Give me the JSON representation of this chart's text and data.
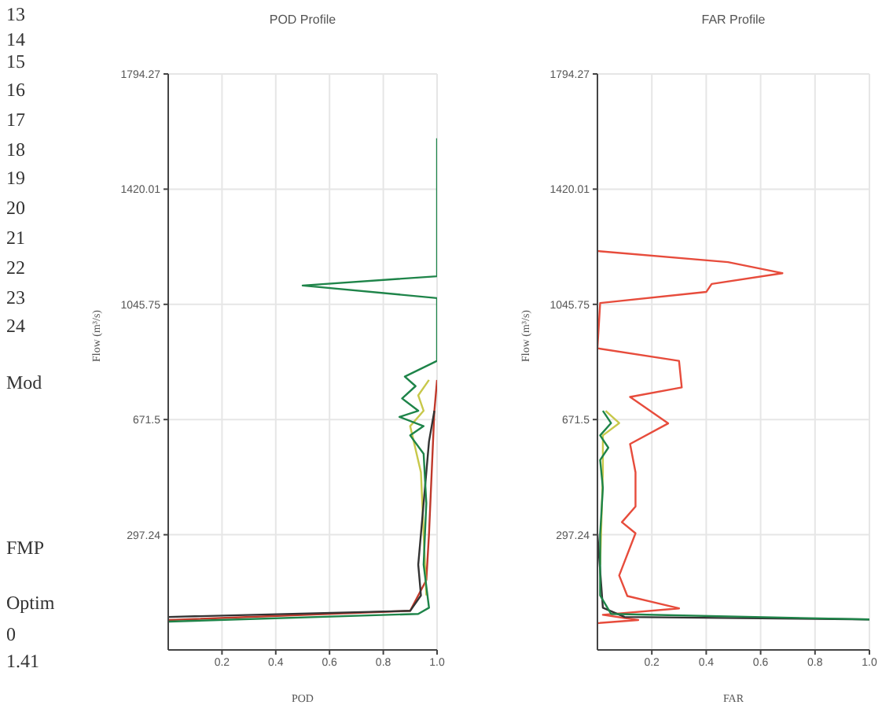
{
  "chart_data": [
    {
      "type": "line",
      "title": "POD Profile",
      "xlabel": "POD",
      "ylabel": "Flow (m³/s)",
      "orientation": "horizontal",
      "grid": true,
      "xlim": [
        0,
        1
      ],
      "xticks": [
        0.2,
        0.4,
        0.6,
        0.8,
        {
          "value": 1,
          "label": "1.0"
        }
      ],
      "ylim": [
        -77.02,
        1794.27
      ],
      "yticks": [
        297.24,
        671.5,
        1045.75,
        1420.01,
        1794.27
      ],
      "annotations": [
        "13",
        "14",
        "15",
        "16",
        "17",
        "18",
        "19",
        "20",
        "21",
        "22",
        "23",
        "24",
        "Mod",
        "FMP",
        "Optim",
        "0",
        "1.41"
      ],
      "series": [
        {
          "color": "#c0392b",
          "x": [
            20,
            50,
            150,
            300,
            500,
            700,
            800
          ],
          "values": [
            0,
            0.9,
            0.96,
            0.97,
            0.98,
            0.99,
            1.0
          ]
        },
        {
          "color": "#c8c84a",
          "x": [
            100,
            300,
            500,
            650,
            700,
            750,
            800
          ],
          "values": [
            0.96,
            0.95,
            0.94,
            0.9,
            0.95,
            0.93,
            0.97
          ]
        },
        {
          "color": "#333333",
          "x": [
            30,
            50,
            100,
            200,
            300,
            400,
            500,
            600,
            700
          ],
          "values": [
            0,
            0.9,
            0.94,
            0.93,
            0.94,
            0.95,
            0.96,
            0.97,
            0.99
          ]
        },
        {
          "color": "#1e8449",
          "x": [
            1585,
            1137,
            1107,
            1066,
            862,
            811,
            780,
            740,
            700,
            680,
            650,
            620,
            560,
            400,
            200,
            60,
            40,
            15
          ],
          "values": [
            1.0,
            1.0,
            0.5,
            1.0,
            1.0,
            0.88,
            0.92,
            0.87,
            0.93,
            0.86,
            0.95,
            0.9,
            0.95,
            0.96,
            0.95,
            0.97,
            0.93,
            0
          ]
        }
      ]
    },
    {
      "type": "line",
      "title": "FAR Profile",
      "xlabel": "FAR",
      "ylabel": "Flow (m³/s)",
      "orientation": "horizontal",
      "grid": true,
      "xlim": [
        0,
        1
      ],
      "xticks": [
        0.2,
        0.4,
        0.6,
        0.8,
        {
          "value": 1,
          "label": "1.0"
        }
      ],
      "ylim": [
        -77.02,
        1794.27
      ],
      "yticks": [
        297.24,
        671.5,
        1045.75,
        1420.01,
        1794.27
      ],
      "series": [
        {
          "color": "#e74c3c",
          "x": [
            1219,
            1183,
            1147,
            1112,
            1086,
            1050,
            1000,
            903,
            862,
            776,
            745,
            659,
            592,
            500,
            389,
            338,
            302,
            165,
            98,
            58,
            37,
            20,
            10
          ],
          "values": [
            0,
            0.48,
            0.68,
            0.42,
            0.4,
            0.01,
            null,
            0,
            0.3,
            0.31,
            0.12,
            0.26,
            0.12,
            0.14,
            0.14,
            0.09,
            0.14,
            0.08,
            0.11,
            0.3,
            0.02,
            0.15,
            0
          ]
        },
        {
          "color": "#c8c84a",
          "x": [
            700,
            660,
            620,
            500,
            200
          ],
          "values": [
            0.03,
            0.08,
            0.02,
            0.02,
            0.01
          ]
        },
        {
          "color": "#333333",
          "x": [
            300,
            60,
            30,
            22
          ],
          "values": [
            0,
            0.02,
            0.1,
            1.0
          ]
        },
        {
          "color": "#1e8449",
          "x": [
            700,
            660,
            620,
            580,
            540,
            450,
            300,
            100,
            40,
            22
          ],
          "values": [
            0.02,
            0.05,
            0.01,
            0.04,
            0.01,
            0.02,
            0.01,
            0.01,
            0.05,
            1.0
          ]
        }
      ]
    }
  ]
}
